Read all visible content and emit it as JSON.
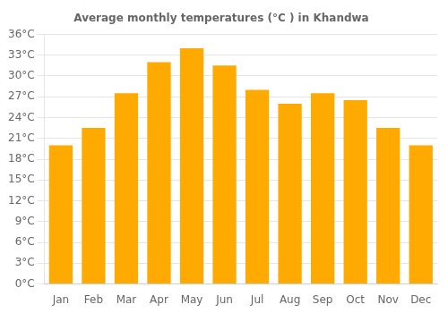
{
  "chart_data": {
    "type": "bar",
    "title": "Average monthly temperatures (°C ) in Khandwa",
    "categories": [
      "Jan",
      "Feb",
      "Mar",
      "Apr",
      "May",
      "Jun",
      "Jul",
      "Aug",
      "Sep",
      "Oct",
      "Nov",
      "Dec"
    ],
    "values": [
      20.0,
      22.5,
      27.5,
      32.0,
      34.0,
      31.5,
      28.0,
      26.0,
      27.5,
      26.5,
      22.5,
      20.0
    ],
    "color": "#FFAA00",
    "ylim": [
      0,
      36
    ],
    "yticks": [
      {
        "value": 0,
        "label": "0°C"
      },
      {
        "value": 3,
        "label": "3°C"
      },
      {
        "value": 6,
        "label": "6°C"
      },
      {
        "value": 9,
        "label": "9°C"
      },
      {
        "value": 12,
        "label": "12°C"
      },
      {
        "value": 15,
        "label": "15°C"
      },
      {
        "value": 18,
        "label": "18°C"
      },
      {
        "value": 21,
        "label": "21°C"
      },
      {
        "value": 24,
        "label": "24°C"
      },
      {
        "value": 27,
        "label": "27°C"
      },
      {
        "value": 30,
        "label": "30°C"
      },
      {
        "value": 33,
        "label": "33°C"
      },
      {
        "value": 36,
        "label": "36°C"
      }
    ],
    "grid": true
  }
}
